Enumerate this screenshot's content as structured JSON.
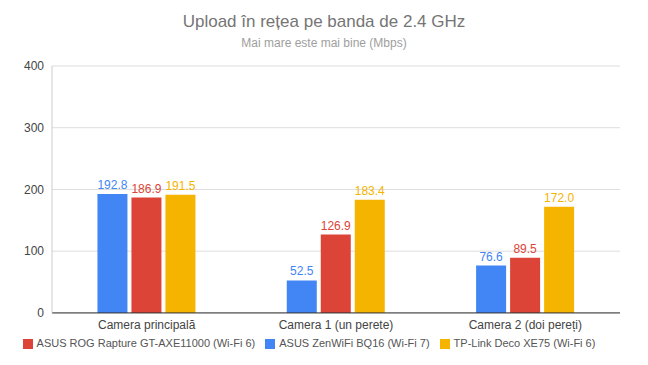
{
  "chart_data": {
    "type": "bar",
    "title": "Upload în rețea pe banda de 2.4 GHz",
    "subtitle": "Mai mare este mai bine (Mbps)",
    "categories": [
      "Camera principală",
      "Camera 1 (un perete)",
      "Camera 2 (doi pereți)"
    ],
    "series": [
      {
        "name": "ASUS ZenWiFi BQ16 (Wi-Fi 7)",
        "color": "#4285f4",
        "values": [
          192.8,
          52.5,
          76.6
        ],
        "value_labels": [
          "192.8",
          "52.5",
          "76.6"
        ]
      },
      {
        "name": "ASUS ROG Rapture GT-AXE11000 (Wi-Fi 6)",
        "color": "#db4437",
        "values": [
          186.9,
          126.9,
          89.5
        ],
        "value_labels": [
          "186.9",
          "126.9",
          "89.5"
        ]
      },
      {
        "name": "TP-Link Deco XE75 (Wi-Fi 6)",
        "color": "#f4b400",
        "values": [
          191.5,
          183.4,
          172.0
        ],
        "value_labels": [
          "191.5",
          "183.4",
          "172.0"
        ]
      }
    ],
    "ylim": [
      0,
      400
    ],
    "yticks": [
      0,
      100,
      200,
      300,
      400
    ],
    "grid": true,
    "legend": "bottom",
    "data_labels": true
  }
}
